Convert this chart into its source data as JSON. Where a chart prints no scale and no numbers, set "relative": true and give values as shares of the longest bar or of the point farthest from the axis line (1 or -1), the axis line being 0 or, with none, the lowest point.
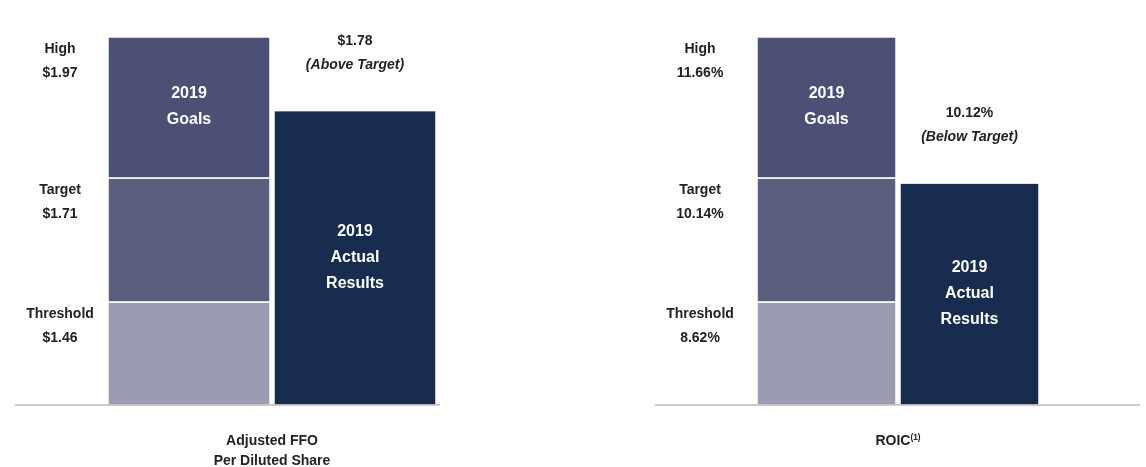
{
  "chart_data": [
    {
      "type": "bar",
      "stacked": true,
      "relative": true,
      "xlabel": "Adjusted FFO\nPer Diluted Share",
      "categories": [
        null,
        null
      ],
      "series": [
        {
          "name": "Threshold",
          "color": "#9a9cb2",
          "values": [
            0.28,
            null
          ]
        },
        {
          "name": "Target",
          "color": "#5b5f7f",
          "values": [
            0.337,
            null
          ]
        },
        {
          "name": "High",
          "color": "#4b5074",
          "values": [
            0.383,
            null
          ]
        },
        {
          "color": "#172c4e",
          "values": [
            null,
            0.8
          ]
        }
      ],
      "annotations": [
        "2019 Goals",
        "2019 Actual Results",
        "$1.46",
        "$1.71",
        "$1.97",
        "$1.78",
        "(Above Target)"
      ]
    },
    {
      "type": "bar",
      "stacked": true,
      "relative": true,
      "xlabel": "ROIC$^{(1)}$",
      "categories": [
        null,
        null
      ],
      "series": [
        {
          "name": "Threshold",
          "color": "#9a9cb2",
          "values": [
            0.28,
            null
          ]
        },
        {
          "name": "Target",
          "color": "#5b5f7f",
          "values": [
            0.337,
            null
          ]
        },
        {
          "name": "High",
          "color": "#4b5074",
          "values": [
            0.383,
            null
          ]
        },
        {
          "color": "#172c4e",
          "values": [
            null,
            0.603
          ]
        }
      ],
      "annotations": [
        "2019 Goals",
        "2019 Actual Results",
        "8.62%",
        "10.14%",
        "11.66%",
        "10.12%",
        "(Below Target)"
      ]
    }
  ]
}
